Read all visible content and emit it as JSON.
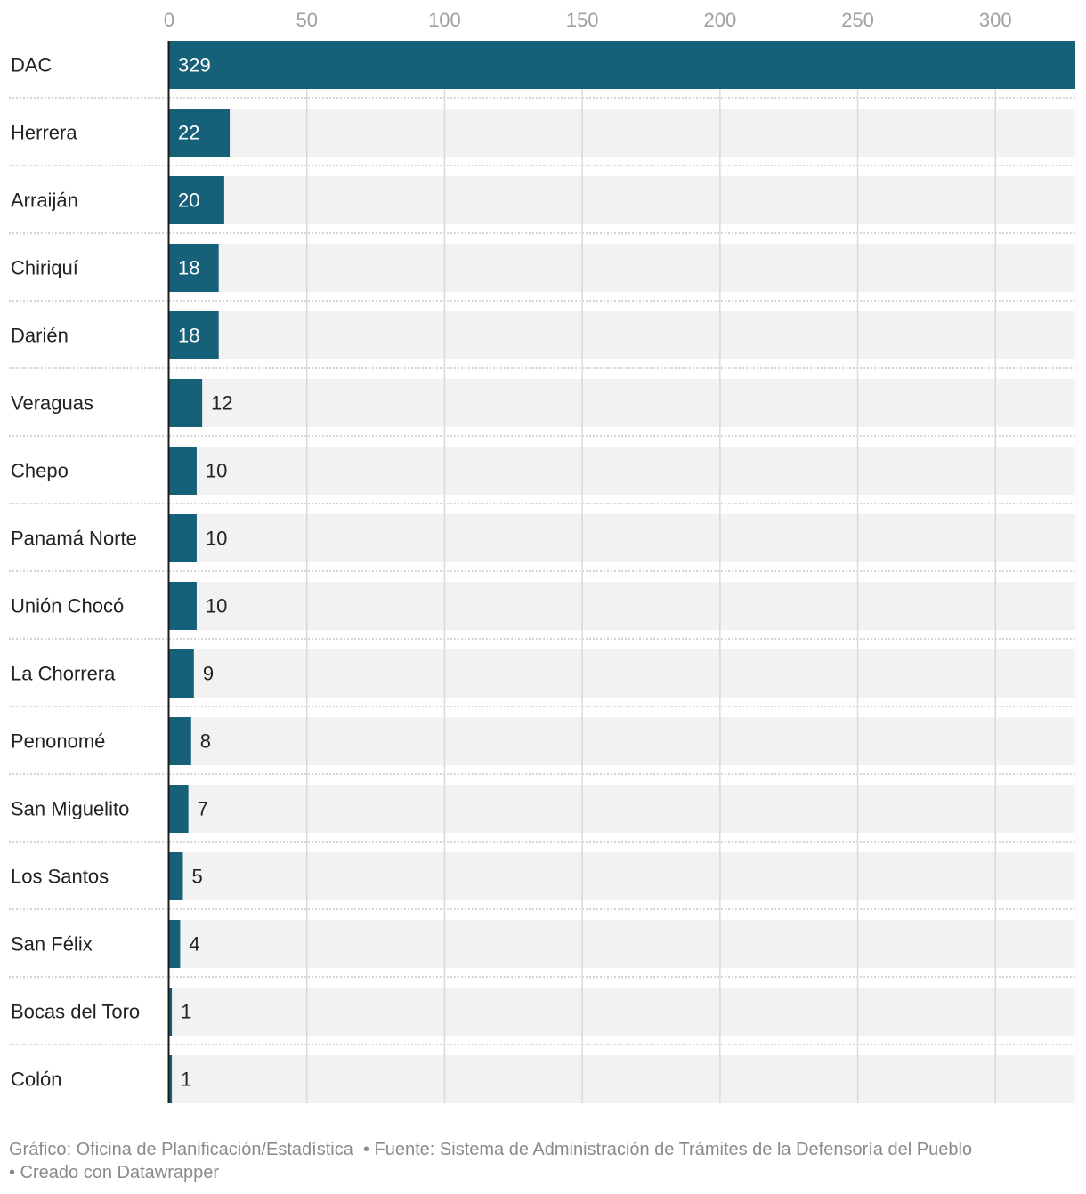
{
  "chart_data": {
    "type": "bar",
    "orientation": "horizontal",
    "categories": [
      "DAC",
      "Herrera",
      "Arraiján",
      "Chiriquí",
      "Darién",
      "Veraguas",
      "Chepo",
      "Panamá Norte",
      "Unión Chocó",
      "La Chorrera",
      "Penonomé",
      "San Miguelito",
      "Los Santos",
      "San Félix",
      "Bocas del Toro",
      "Colón"
    ],
    "values": [
      329,
      22,
      20,
      18,
      18,
      12,
      10,
      10,
      10,
      9,
      8,
      7,
      5,
      4,
      1,
      1
    ],
    "xlim": [
      0,
      329
    ],
    "x_ticks": [
      0,
      50,
      100,
      150,
      200,
      250,
      300
    ],
    "tick_labels": [
      "0",
      "50",
      "100",
      "150",
      "200",
      "250",
      "300"
    ],
    "axis_position": "top",
    "grid": true,
    "data_labels": true,
    "colors": {
      "bar": "#16607a",
      "background_bar": "#f2f2f2",
      "grid": "#d9d9d9",
      "axis": "#1a1a1a"
    }
  },
  "footer": {
    "credit": "Gráfico: Oficina de Planificación/Estadística",
    "source": "• Fuente: Sistema de Administración de Trámites de la Defensoría del Pueblo",
    "tool": "• Creado con Datawrapper"
  }
}
